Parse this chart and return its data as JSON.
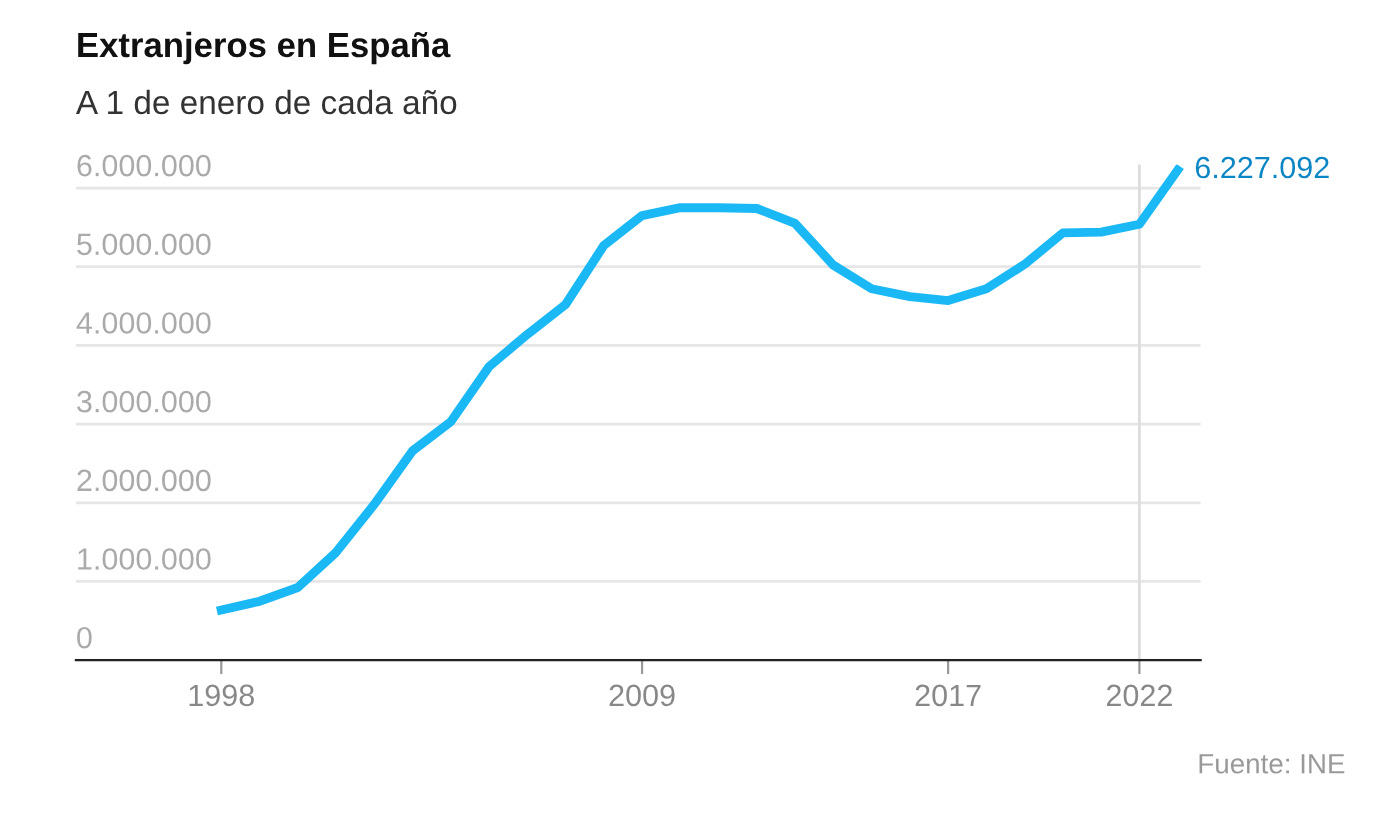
{
  "chart_data": {
    "type": "line",
    "title": "Extranjeros en España",
    "subtitle": "A 1 de enero de cada año",
    "x": [
      1998,
      1999,
      2000,
      2001,
      2002,
      2003,
      2004,
      2005,
      2006,
      2007,
      2008,
      2009,
      2010,
      2011,
      2012,
      2013,
      2014,
      2015,
      2016,
      2017,
      2018,
      2019,
      2020,
      2021,
      2022,
      2023
    ],
    "series": [
      {
        "color": "#1ab8f5",
        "values": [
          637000,
          748000,
          924000,
          1370000,
          1980000,
          2660000,
          3030000,
          3730000,
          4140000,
          4520000,
          5270000,
          5650000,
          5750000,
          5750000,
          5740000,
          5550000,
          5020000,
          4720000,
          4620000,
          4570000,
          4720000,
          5030000,
          5430000,
          5440000,
          5540000,
          6227092
        ],
        "value_labels": [
          null,
          null,
          null,
          null,
          null,
          null,
          null,
          null,
          null,
          null,
          null,
          null,
          null,
          null,
          null,
          null,
          null,
          null,
          null,
          null,
          null,
          null,
          null,
          null,
          null,
          "6.227.092"
        ]
      }
    ],
    "xlim": [
      1994.2,
      2023.6
    ],
    "ylim": [
      0,
      6300000
    ],
    "xticks": [
      1998,
      2009,
      2017,
      2022
    ],
    "yticks": [
      {
        "value": 0,
        "label": "0"
      },
      {
        "value": 1000000,
        "label": "1.000.000"
      },
      {
        "value": 2000000,
        "label": "2.000.000"
      },
      {
        "value": 3000000,
        "label": "3.000.000"
      },
      {
        "value": 4000000,
        "label": "4.000.000"
      },
      {
        "value": 5000000,
        "label": "5.000.000"
      },
      {
        "value": 6000000,
        "label": "6.000.000"
      }
    ],
    "grid": "y",
    "legend": false,
    "marker": "none",
    "line_style": "solid",
    "ref_lines": [
      {
        "axis": "x",
        "value": 2022,
        "color": "#dddddd"
      }
    ],
    "annotations": [
      "Fuente: INE"
    ]
  }
}
